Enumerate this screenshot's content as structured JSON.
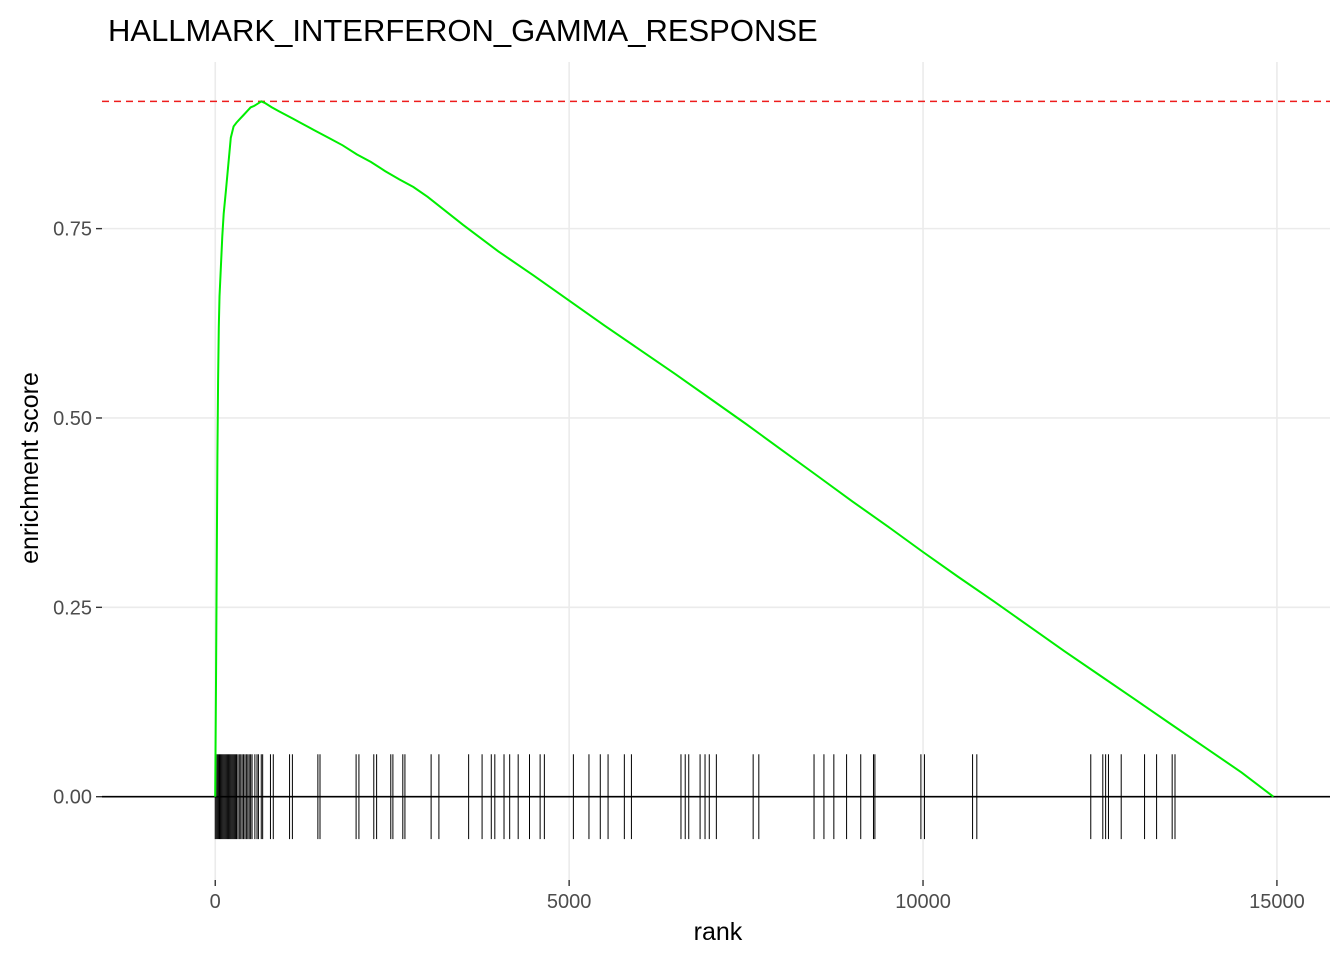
{
  "chart_data": {
    "type": "line",
    "title": "HALLMARK_INTERFERON_GAMMA_RESPONSE",
    "xlabel": "rank",
    "ylabel": "enrichment score",
    "xlim": [
      -1600,
      15750
    ],
    "ylim": [
      -0.11,
      0.97
    ],
    "x_ticks": [
      0,
      5000,
      10000,
      15000
    ],
    "x_tick_labels": [
      "0",
      "5000",
      "10000",
      "15000"
    ],
    "y_ticks": [
      0.0,
      0.25,
      0.5,
      0.75
    ],
    "y_tick_labels": [
      "0.00",
      "0.25",
      "0.50",
      "0.75"
    ],
    "grid": true,
    "colors": {
      "curve": "#00ee00",
      "max_line": "#ee1c1c",
      "zero_line": "#000000",
      "hits": "#000000",
      "grid": "#ebebeb"
    },
    "max_es": 0.918,
    "series": [
      {
        "x": [
          0,
          10,
          20,
          30,
          40,
          50,
          60,
          80,
          100,
          120,
          150,
          180,
          220,
          260,
          300,
          350,
          400,
          450,
          500,
          550,
          600,
          650,
          700,
          800,
          900,
          1000,
          1100,
          1200,
          1400,
          1600,
          1800,
          2000,
          2200,
          2400,
          2600,
          2800,
          3000,
          3500,
          4000,
          4500,
          5000,
          5500,
          6000,
          6500,
          7000,
          7500,
          8000,
          8500,
          9000,
          9500,
          10000,
          10500,
          11000,
          11500,
          12000,
          12500,
          13000,
          13500,
          14000,
          14500,
          14950
        ],
        "y": [
          0.0,
          0.15,
          0.3,
          0.45,
          0.55,
          0.62,
          0.66,
          0.7,
          0.74,
          0.77,
          0.8,
          0.83,
          0.87,
          0.885,
          0.89,
          0.895,
          0.9,
          0.905,
          0.91,
          0.912,
          0.915,
          0.918,
          0.916,
          0.91,
          0.905,
          0.9,
          0.895,
          0.89,
          0.88,
          0.87,
          0.86,
          0.848,
          0.838,
          0.826,
          0.815,
          0.805,
          0.792,
          0.755,
          0.72,
          0.688,
          0.655,
          0.622,
          0.59,
          0.558,
          0.525,
          0.492,
          0.458,
          0.424,
          0.39,
          0.357,
          0.323,
          0.29,
          0.258,
          0.225,
          0.192,
          0.16,
          0.128,
          0.096,
          0.064,
          0.032,
          0.0
        ]
      }
    ],
    "gene_hits": [
      0,
      15,
      30,
      45,
      60,
      75,
      90,
      105,
      120,
      135,
      150,
      165,
      180,
      195,
      210,
      225,
      240,
      255,
      270,
      285,
      300,
      320,
      340,
      360,
      380,
      400,
      420,
      440,
      460,
      480,
      500,
      520,
      560,
      590,
      610,
      650,
      670,
      780,
      820,
      1050,
      1090,
      1450,
      1480,
      1990,
      2030,
      2240,
      2280,
      2480,
      2510,
      2650,
      2680,
      3050,
      3160,
      3580,
      3770,
      3900,
      3950,
      4080,
      4160,
      4280,
      4440,
      4590,
      4650,
      5060,
      5280,
      5440,
      5550,
      5780,
      5880,
      6580,
      6640,
      6690,
      6850,
      6920,
      6980,
      7080,
      7600,
      7680,
      8460,
      8600,
      8740,
      8920,
      9120,
      9300,
      9320,
      9970,
      10020,
      10700,
      10760,
      12370,
      12540,
      12580,
      12620,
      12800,
      13130,
      13300,
      13520,
      13560
    ]
  }
}
